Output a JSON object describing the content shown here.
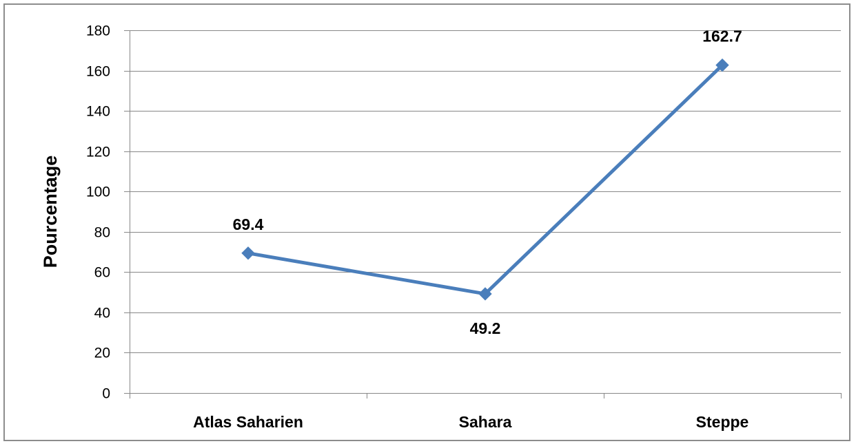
{
  "chart_data": {
    "type": "line",
    "categories": [
      "Atlas Saharien",
      "Sahara",
      "Steppe"
    ],
    "series": [
      {
        "values": [
          69.4,
          49.2,
          162.7
        ],
        "data_labels": [
          "69.4",
          "49.2",
          "162.7"
        ],
        "color": "#4a7ebb",
        "marker": "diamond"
      }
    ],
    "xlabel": "",
    "ylabel": "Pourcentage",
    "ylim": [
      0,
      180
    ],
    "yticks": [
      0,
      20,
      40,
      60,
      80,
      100,
      120,
      140,
      160,
      180
    ],
    "grid": true,
    "legend": "none",
    "gridline_color": "#878787",
    "frame_color": "#8c8c8c"
  }
}
